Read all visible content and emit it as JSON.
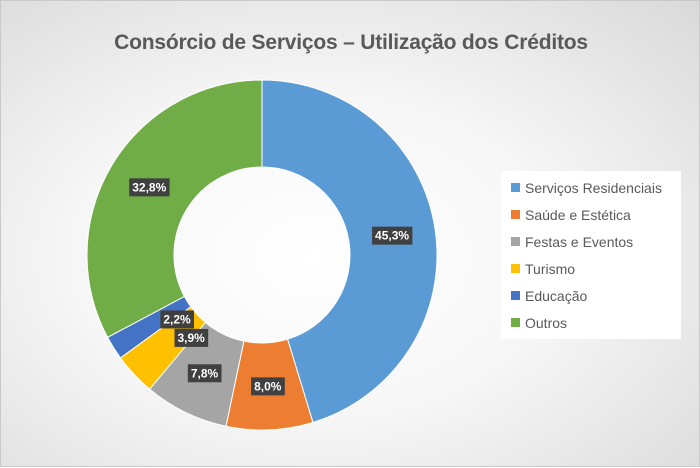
{
  "chart_data": {
    "type": "pie",
    "variant": "donut",
    "title": "Consórcio de Serviços – Utilização dos Créditos",
    "categories": [
      "Serviços Residenciais",
      "Saúde e Estética",
      "Festas e Eventos",
      "Turismo",
      "Educação",
      "Outros"
    ],
    "values": [
      45.3,
      8.0,
      7.8,
      3.9,
      2.2,
      32.8
    ],
    "data_labels": [
      "45,3%",
      "8,0%",
      "7,8%",
      "3,9%",
      "2,2%",
      "32,8%"
    ],
    "unit": "%",
    "colors": [
      "#5b9bd5",
      "#ed7d31",
      "#a5a5a5",
      "#ffc000",
      "#4472c4",
      "#70ad47"
    ],
    "legend_position": "right"
  }
}
